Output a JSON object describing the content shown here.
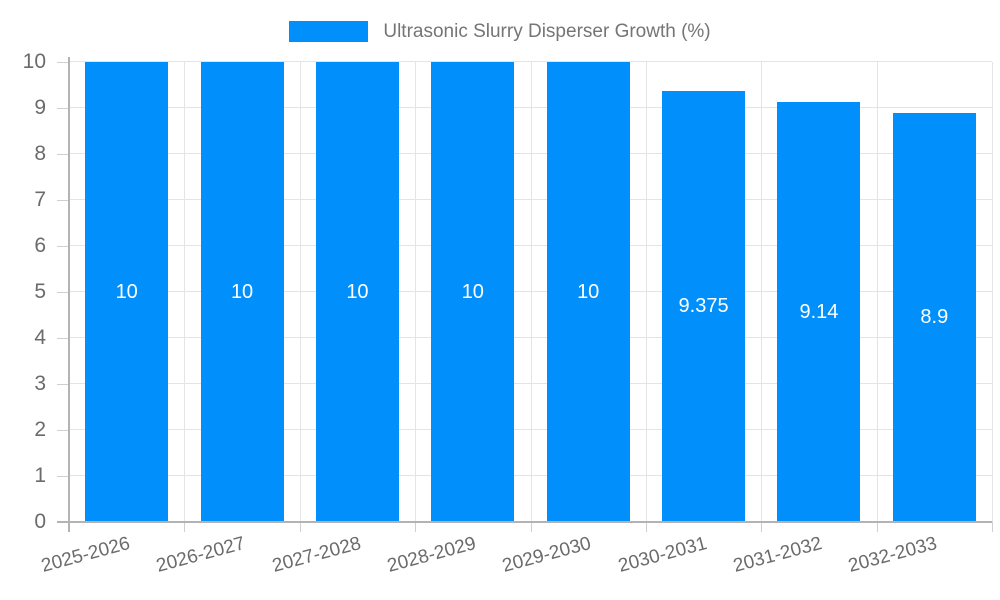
{
  "chart_data": {
    "type": "bar",
    "title": "Ultrasonic Slurry Disperser Growth (%)",
    "categories": [
      "2025-2026",
      "2026-2027",
      "2027-2028",
      "2028-2029",
      "2029-2030",
      "2030-2031",
      "2031-2032",
      "2032-2033"
    ],
    "values": [
      10,
      10,
      10,
      10,
      10,
      9.375,
      9.14,
      8.9
    ],
    "value_labels": [
      "10",
      "10",
      "10",
      "10",
      "10",
      "9.375",
      "9.14",
      "8.9"
    ],
    "xlabel": "",
    "ylabel": "",
    "ylim": [
      0,
      10
    ],
    "y_ticks": [
      0,
      1,
      2,
      3,
      4,
      5,
      6,
      7,
      8,
      9,
      10
    ],
    "grid": true,
    "legend_position": "top",
    "colors": {
      "bar": "#008FFB",
      "value_label": "#ffffff",
      "axis_text": "#6b6b6b",
      "legend_text": "#757575",
      "gridline": "#e4e4e4",
      "axis_line": "#b3b3b3",
      "tick": "#cfcfcf",
      "background": "#ffffff"
    }
  }
}
